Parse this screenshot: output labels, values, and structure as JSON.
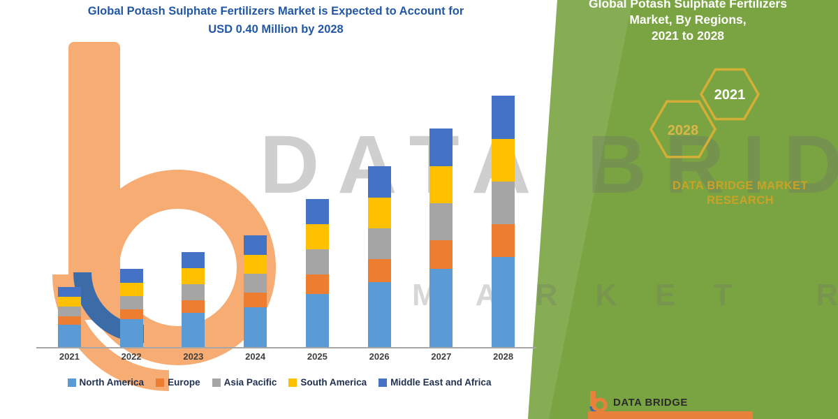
{
  "main_title": {
    "line1": "Global Potash Sulphate Fertilizers Market is Expected to Account for",
    "line2": "USD 0.40 Million by 2028"
  },
  "watermark": {
    "line1": "DATA BRIDGE",
    "line2": "MARKET RESEARCH"
  },
  "chart_data": {
    "type": "bar",
    "stacked": true,
    "title": "Global Potash Sulphate Fertilizers Market is Expected to Account for USD 0.40 Million by 2028",
    "unit": "USD Million",
    "categories": [
      "2021",
      "2022",
      "2023",
      "2024",
      "2025",
      "2026",
      "2027",
      "2028"
    ],
    "series": [
      {
        "name": "North America",
        "color": "#5B9BD5",
        "values": [
          0.035,
          0.044,
          0.054,
          0.063,
          0.084,
          0.103,
          0.124,
          0.143
        ]
      },
      {
        "name": "Europe",
        "color": "#ED7D31",
        "values": [
          0.013,
          0.016,
          0.02,
          0.023,
          0.031,
          0.037,
          0.045,
          0.052
        ]
      },
      {
        "name": "Asia Pacific",
        "color": "#A5A5A5",
        "values": [
          0.016,
          0.021,
          0.026,
          0.03,
          0.04,
          0.049,
          0.059,
          0.068
        ]
      },
      {
        "name": "South America",
        "color": "#FFC000",
        "values": [
          0.016,
          0.021,
          0.026,
          0.03,
          0.04,
          0.049,
          0.059,
          0.068
        ]
      },
      {
        "name": "Middle East and Africa",
        "color": "#4472C4",
        "values": [
          0.016,
          0.022,
          0.026,
          0.031,
          0.04,
          0.05,
          0.06,
          0.069
        ]
      }
    ],
    "totals": [
      0.096,
      0.124,
      0.152,
      0.177,
      0.235,
      0.288,
      0.347,
      0.4
    ],
    "ylim": [
      0,
      0.45
    ],
    "grid": false,
    "legend_position": "bottom",
    "xlabel": "",
    "ylabel": ""
  },
  "green_panel": {
    "background": "#7AA441",
    "heading": {
      "line1": "Global Potash Sulphate Fertilizers",
      "line2": "Market, By Regions,",
      "line3": "2021 to 2028"
    },
    "hex_badges": [
      {
        "year": "2021"
      },
      {
        "year": "2028"
      }
    ],
    "brand": {
      "line1": "DATA BRIDGE MARKET",
      "line2": "RESEARCH"
    },
    "footer": {
      "brand": "DATA BRIDGE"
    }
  },
  "colors": {
    "title": "#2157A4",
    "green": "#7AA441",
    "hex_stroke": "#D4AF37",
    "brand_gold": "#C9A227",
    "logo_orange": "#F6AC72",
    "logo_blue": "#3C6CA8",
    "footer_orange": "#E8813B"
  }
}
